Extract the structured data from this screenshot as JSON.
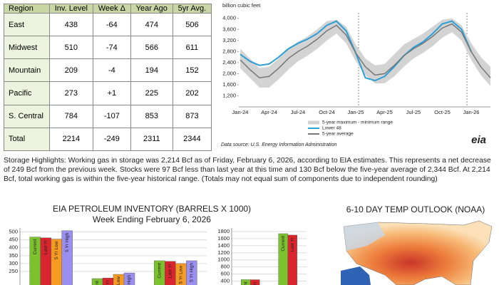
{
  "table": {
    "header": [
      "Region",
      "Inv. Level",
      "Week Δ",
      "Year Ago",
      "5yr Avg."
    ],
    "rows": [
      [
        "East",
        "438",
        "-64",
        "474",
        "506"
      ],
      [
        "Midwest",
        "510",
        "-74",
        "566",
        "611"
      ],
      [
        "Mountain",
        "209",
        "-4",
        "194",
        "152"
      ],
      [
        "Pacific",
        "273",
        "+1",
        "225",
        "202"
      ],
      [
        "S. Central",
        "784",
        "-107",
        "853",
        "873"
      ],
      [
        "Total",
        "2214",
        "-249",
        "2311",
        "2344"
      ]
    ]
  },
  "highlights": "Storage Highlights: Working gas in storage was 2,214 Bcf as of Friday, February 6, 2026, according to EIA estimates. This represents a net decrease of 249 Bcf from the previous week. Stocks were 97 Bcf less than last year at this time and 130 Bcf below the five-year average of 2,344 Bcf. At 2,214 Bcf, total working gas is within the five-year historical range. (Totals may not equal sum of components due to independent rounding)",
  "map": {
    "title": "6-10 DAY TEMP OUTLOOK (NOAA)"
  },
  "chart_data": [
    {
      "type": "line",
      "y_label": "billion cubic feet",
      "source": "Data source:  U.S. Energy Information Administration",
      "logo": "eia",
      "categories": [
        "Jan-24",
        null,
        null,
        "Apr-24",
        null,
        null,
        "Jul-24",
        null,
        null,
        "Oct-24",
        null,
        null,
        "Jan-25",
        null,
        null,
        "Apr-25",
        null,
        null,
        "Jul-25",
        null,
        null,
        "Oct-25",
        null,
        null,
        "Jan-26",
        null,
        null
      ],
      "ylim": [
        800,
        4200
      ],
      "yticks": [
        {
          "value": 1200,
          "label": "1,200"
        },
        {
          "value": 1600,
          "label": "1,600"
        },
        {
          "value": 2000,
          "label": "2,000"
        },
        {
          "value": 2400,
          "label": "2,400"
        },
        {
          "value": 2800,
          "label": "2,800"
        },
        {
          "value": 3200,
          "label": "3,200"
        },
        {
          "value": 3600,
          "label": "3,600"
        },
        {
          "value": 4000,
          "label": "4,000"
        }
      ],
      "series": [
        {
          "name": "5-year maximum - minimum range",
          "color": "#d3d3d3",
          "values": [
            2900,
            2550,
            2200,
            2250,
            2550,
            2900,
            3150,
            3350,
            3600,
            3900,
            3950,
            3700,
            3050,
            2550,
            2300,
            2350,
            2700,
            3050,
            3250,
            3450,
            3700,
            3950,
            4000,
            3750,
            3100,
            2600,
            2250
          ],
          "lower": [
            2200,
            1850,
            1500,
            1500,
            1800,
            2150,
            2450,
            2650,
            2900,
            3200,
            3450,
            3100,
            2450,
            1950,
            1650,
            1650,
            1900,
            2250,
            2550,
            2750,
            3000,
            3300,
            3500,
            3200,
            2500,
            1950,
            1550
          ]
        },
        {
          "name": "Lower 48",
          "color": "#2b9fd6",
          "values": [
            2700,
            2450,
            2300,
            2350,
            2600,
            2900,
            3100,
            3250,
            3450,
            3750,
            3900,
            3550,
            2750,
            1850,
            1750,
            1900,
            2250,
            2650,
            2950,
            3150,
            3450,
            3800,
            3900,
            3600,
            2800,
            null,
            null
          ]
        },
        {
          "name": "5-year average",
          "color": "#777777",
          "values": [
            2500,
            2150,
            1850,
            1900,
            2200,
            2550,
            2800,
            3000,
            3250,
            3550,
            3750,
            3400,
            2750,
            2250,
            1950,
            2000,
            2300,
            2650,
            2900,
            3100,
            3350,
            3650,
            3800,
            3500,
            2800,
            2250,
            1850
          ]
        }
      ]
    },
    {
      "type": "bar",
      "title": "EIA PETROLEUM INVENTORY (BARRELS X 1000)",
      "subtitle": "Week Ending February 6, 2026",
      "categories": [
        null,
        null,
        null
      ],
      "ylim": [
        160,
        525
      ],
      "yticks": [
        250,
        300,
        350,
        400,
        450,
        500
      ],
      "grid": true,
      "series": [
        {
          "name": "Current",
          "color": "#7cc22e",
          "values": [
            468,
            205,
            318
          ]
        },
        {
          "name": "Last Yr",
          "color": "#d9262e",
          "values": [
            463,
            209,
            314
          ]
        },
        {
          "name": "5 Yr Low",
          "color": "#f59a23",
          "values": [
            455,
            232,
            300
          ]
        },
        {
          "name": "5 Yr High",
          "color": "#9a8ff0",
          "values": [
            508,
            241,
            318
          ]
        }
      ]
    },
    {
      "type": "bar",
      "categories": [
        null,
        null
      ],
      "ylim": [
        270,
        1900
      ],
      "yticks": [
        400,
        600,
        800,
        1000,
        1200,
        1400,
        1600,
        1800
      ],
      "grid": true,
      "series": [
        {
          "name": "Current",
          "color": "#7cc22e",
          "values": [
            442,
            1740
          ]
        },
        {
          "name": "Last Yr",
          "color": "#d9262e",
          "values": [
            440,
            1700
          ]
        }
      ]
    }
  ]
}
